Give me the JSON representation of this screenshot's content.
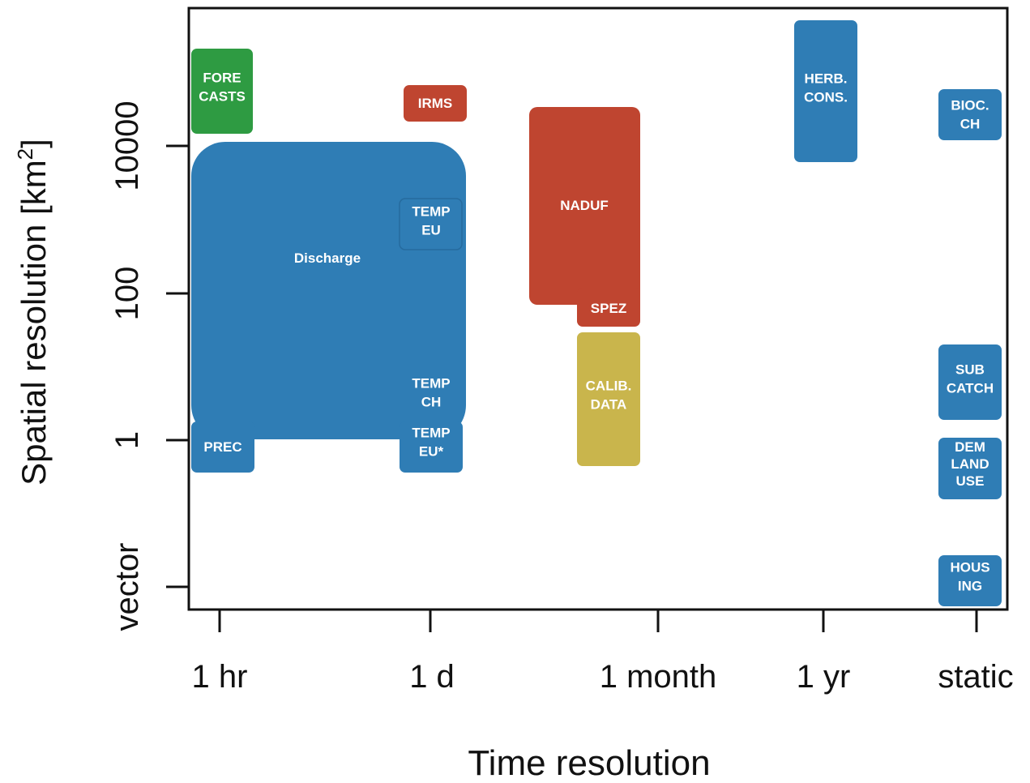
{
  "axes": {
    "x_label": "Time resolution",
    "y_label": {
      "text": "Spatial resolution [km",
      "superscript": "2",
      "close": "]"
    },
    "x_ticks": [
      "1 hr",
      "1 d",
      "1 month",
      "1 yr",
      "static"
    ],
    "y_ticks": [
      "10000",
      "100",
      "1",
      "vector"
    ]
  },
  "boxes": [
    {
      "lines": [
        "FORE",
        "CASTS"
      ]
    },
    {
      "lines": [
        "IRMS"
      ]
    },
    {
      "lines": [
        "Discharge"
      ]
    },
    {
      "lines": [
        "TEMP",
        "EU"
      ]
    },
    {
      "lines": [
        "TEMP",
        "CH"
      ]
    },
    {
      "lines": [
        "PREC"
      ]
    },
    {
      "lines": [
        "TEMP",
        "EU*"
      ]
    },
    {
      "lines": [
        "NADUF"
      ]
    },
    {
      "lines": [
        "SPEZ"
      ]
    },
    {
      "lines": [
        "CALIB.",
        "DATA"
      ]
    },
    {
      "lines": [
        "HERB.",
        "CONS."
      ]
    },
    {
      "lines": [
        "BIOC.",
        "CH"
      ]
    },
    {
      "lines": [
        "SUB",
        "CATCH"
      ]
    },
    {
      "lines": [
        "DEM",
        "LAND",
        "USE"
      ]
    },
    {
      "lines": [
        "HOUS",
        "ING"
      ]
    }
  ]
}
